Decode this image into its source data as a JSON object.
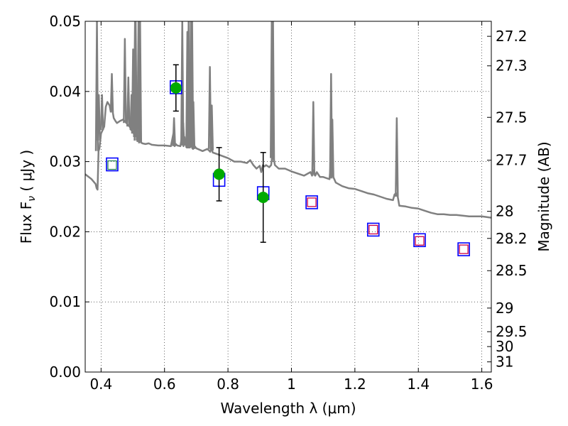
{
  "chart_data": {
    "type": "scatter",
    "xlabel": "Wavelength  λ (μm)",
    "ylabel": "Flux  F",
    "ylabel_sub": "ν",
    "ylabel_unit": " ( μJy )",
    "y2label": "Magnitude (AB)",
    "xlim": [
      0.35,
      1.63
    ],
    "ylim": [
      0.0,
      0.05
    ],
    "grid": true,
    "x_ticks": [
      {
        "value": 0.4,
        "label": "0.4"
      },
      {
        "value": 0.6,
        "label": "0.6"
      },
      {
        "value": 0.8,
        "label": "0.8"
      },
      {
        "value": 1.0,
        "label": "1"
      },
      {
        "value": 1.2,
        "label": "1.2"
      },
      {
        "value": 1.4,
        "label": "1.4"
      },
      {
        "value": 1.6,
        "label": "1.6"
      }
    ],
    "y_ticks": [
      {
        "value": 0.0,
        "label": "0.00"
      },
      {
        "value": 0.01,
        "label": "0.01"
      },
      {
        "value": 0.02,
        "label": "0.02"
      },
      {
        "value": 0.03,
        "label": "0.03"
      },
      {
        "value": 0.04,
        "label": "0.04"
      },
      {
        "value": 0.05,
        "label": "0.05"
      }
    ],
    "mag_ticks": [
      {
        "flux": 0.04786,
        "label": "27.2"
      },
      {
        "flux": 0.04365,
        "label": "27.3"
      },
      {
        "flux": 0.03631,
        "label": "27.5"
      },
      {
        "flux": 0.0302,
        "label": "27.7"
      },
      {
        "flux": 0.02291,
        "label": "28"
      },
      {
        "flux": 0.01905,
        "label": "28.2"
      },
      {
        "flux": 0.01445,
        "label": "28.5"
      },
      {
        "flux": 0.00912,
        "label": "29"
      },
      {
        "flux": 0.00575,
        "label": "29.5"
      },
      {
        "flux": 0.00363,
        "label": "30"
      },
      {
        "flux": 0.00145,
        "label": "31"
      }
    ],
    "series": [
      {
        "kind": "line",
        "color": "#808080",
        "x": [
          0.35,
          0.37,
          0.383,
          0.386,
          0.389,
          0.392,
          0.395,
          0.4,
          0.405,
          0.41,
          0.415,
          0.42,
          0.427,
          0.43,
          0.433,
          0.437,
          0.44,
          0.445,
          0.45,
          0.46,
          0.47,
          0.48,
          0.485,
          0.49,
          0.495,
          0.5,
          0.503,
          0.506,
          0.509,
          0.512,
          0.515,
          0.518,
          0.522,
          0.525,
          0.53,
          0.54,
          0.55,
          0.56,
          0.58,
          0.6,
          0.62,
          0.628,
          0.632,
          0.636,
          0.64,
          0.65,
          0.653,
          0.656,
          0.66,
          0.663,
          0.666,
          0.67,
          0.68,
          0.684,
          0.688,
          0.69,
          0.695,
          0.7,
          0.72,
          0.735,
          0.74,
          0.744,
          0.748,
          0.752,
          0.77,
          0.8,
          0.82,
          0.84,
          0.86,
          0.87,
          0.88,
          0.89,
          0.9,
          0.905,
          0.91,
          0.915,
          0.92,
          0.93,
          0.936,
          0.94,
          0.944,
          0.948,
          0.96,
          0.98,
          1.0,
          1.02,
          1.04,
          1.06,
          1.065,
          1.07,
          1.075,
          1.08,
          1.09,
          1.1,
          1.12,
          1.125,
          1.13,
          1.135,
          1.14,
          1.16,
          1.18,
          1.2,
          1.22,
          1.24,
          1.26,
          1.28,
          1.3,
          1.32,
          1.325,
          1.33,
          1.335,
          1.34,
          1.36,
          1.38,
          1.4,
          1.42,
          1.44,
          1.46,
          1.48,
          1.5,
          1.52,
          1.54,
          1.56,
          1.58,
          1.6,
          1.63
        ],
        "y": [
          0.0282,
          0.0275,
          0.0268,
          0.0262,
          0.026,
          0.0315,
          0.0319,
          0.034,
          0.0345,
          0.035,
          0.0378,
          0.0385,
          0.038,
          0.0372,
          0.0378,
          0.037,
          0.0362,
          0.0358,
          0.0355,
          0.0358,
          0.036,
          0.0355,
          0.0352,
          0.035,
          0.0345,
          0.0343,
          0.034,
          0.0337,
          0.0338,
          0.0339,
          0.0337,
          0.0333,
          0.033,
          0.0328,
          0.0326,
          0.0325,
          0.0326,
          0.0324,
          0.0323,
          0.0323,
          0.0322,
          0.034,
          0.0322,
          0.0325,
          0.0323,
          0.0322,
          0.0331,
          0.0332,
          0.0322,
          0.0335,
          0.0325,
          0.032,
          0.032,
          0.035,
          0.032,
          0.0318,
          0.0322,
          0.0319,
          0.0315,
          0.0318,
          0.0316,
          0.0314,
          0.032,
          0.0313,
          0.031,
          0.0305,
          0.03,
          0.03,
          0.0298,
          0.0302,
          0.0295,
          0.029,
          0.0294,
          0.0285,
          0.0295,
          0.0293,
          0.0295,
          0.0292,
          0.0295,
          0.031,
          0.0305,
          0.0295,
          0.029,
          0.029,
          0.0286,
          0.0283,
          0.028,
          0.0285,
          0.028,
          0.0288,
          0.028,
          0.0285,
          0.0278,
          0.0278,
          0.0275,
          0.0305,
          0.028,
          0.0275,
          0.027,
          0.0265,
          0.0262,
          0.0261,
          0.0258,
          0.0255,
          0.0253,
          0.025,
          0.0247,
          0.0245,
          0.0253,
          0.0255,
          0.025,
          0.0237,
          0.0236,
          0.0234,
          0.0233,
          0.023,
          0.0227,
          0.0225,
          0.0225,
          0.0224,
          0.0224,
          0.0223,
          0.0222,
          0.0222,
          0.0222,
          0.022
        ]
      },
      {
        "kind": "line-spikes",
        "color": "#808080",
        "spikes": [
          {
            "x": 0.387,
            "base": 0.0315,
            "peak": 0.05
          },
          {
            "x": 0.393,
            "base": 0.033,
            "peak": 0.0395
          },
          {
            "x": 0.403,
            "base": 0.0345,
            "peak": 0.0395
          },
          {
            "x": 0.434,
            "base": 0.037,
            "peak": 0.0425
          },
          {
            "x": 0.475,
            "base": 0.0355,
            "peak": 0.0475
          },
          {
            "x": 0.486,
            "base": 0.035,
            "peak": 0.042
          },
          {
            "x": 0.496,
            "base": 0.0345,
            "peak": 0.0395
          },
          {
            "x": 0.501,
            "base": 0.034,
            "peak": 0.046
          },
          {
            "x": 0.507,
            "base": 0.0335,
            "peak": 0.05
          },
          {
            "x": 0.509,
            "base": 0.033,
            "peak": 0.05
          },
          {
            "x": 0.518,
            "base": 0.0328,
            "peak": 0.05
          },
          {
            "x": 0.523,
            "base": 0.0326,
            "peak": 0.05
          },
          {
            "x": 0.63,
            "base": 0.0322,
            "peak": 0.0362
          },
          {
            "x": 0.656,
            "base": 0.0325,
            "peak": 0.05
          },
          {
            "x": 0.659,
            "base": 0.0323,
            "peak": 0.0355
          },
          {
            "x": 0.672,
            "base": 0.032,
            "peak": 0.0485
          },
          {
            "x": 0.676,
            "base": 0.032,
            "peak": 0.05
          },
          {
            "x": 0.683,
            "base": 0.032,
            "peak": 0.05
          },
          {
            "x": 0.687,
            "base": 0.032,
            "peak": 0.05
          },
          {
            "x": 0.691,
            "base": 0.0318,
            "peak": 0.0385
          },
          {
            "x": 0.743,
            "base": 0.0318,
            "peak": 0.0435
          },
          {
            "x": 0.749,
            "base": 0.0316,
            "peak": 0.038
          },
          {
            "x": 0.938,
            "base": 0.0305,
            "peak": 0.05
          },
          {
            "x": 0.942,
            "base": 0.03,
            "peak": 0.05
          },
          {
            "x": 1.069,
            "base": 0.028,
            "peak": 0.0385
          },
          {
            "x": 1.125,
            "base": 0.0278,
            "peak": 0.0425
          },
          {
            "x": 1.129,
            "base": 0.0276,
            "peak": 0.036
          },
          {
            "x": 1.332,
            "base": 0.025,
            "peak": 0.0362
          }
        ]
      },
      {
        "kind": "open-square",
        "color": "#0000ff",
        "x": [
          0.435,
          0.636,
          0.772,
          0.911,
          1.064,
          1.258,
          1.404,
          1.543
        ],
        "y": [
          0.0296,
          0.0406,
          0.0274,
          0.0255,
          0.0242,
          0.0203,
          0.0188,
          0.0175
        ]
      },
      {
        "kind": "small-square",
        "color": "#2e8b57",
        "x": [
          0.435
        ],
        "y": [
          0.0295
        ]
      },
      {
        "kind": "small-square",
        "color": "#cc0044",
        "x": [
          1.064,
          1.258,
          1.404,
          1.543
        ],
        "y": [
          0.0242,
          0.0203,
          0.0187,
          0.0175
        ]
      },
      {
        "kind": "dot-errorbar",
        "color": "#00aa00",
        "x": [
          0.636,
          0.772,
          0.911
        ],
        "y": [
          0.0405,
          0.0282,
          0.0249
        ],
        "err": [
          0.0033,
          0.0038,
          0.0064
        ]
      }
    ]
  }
}
